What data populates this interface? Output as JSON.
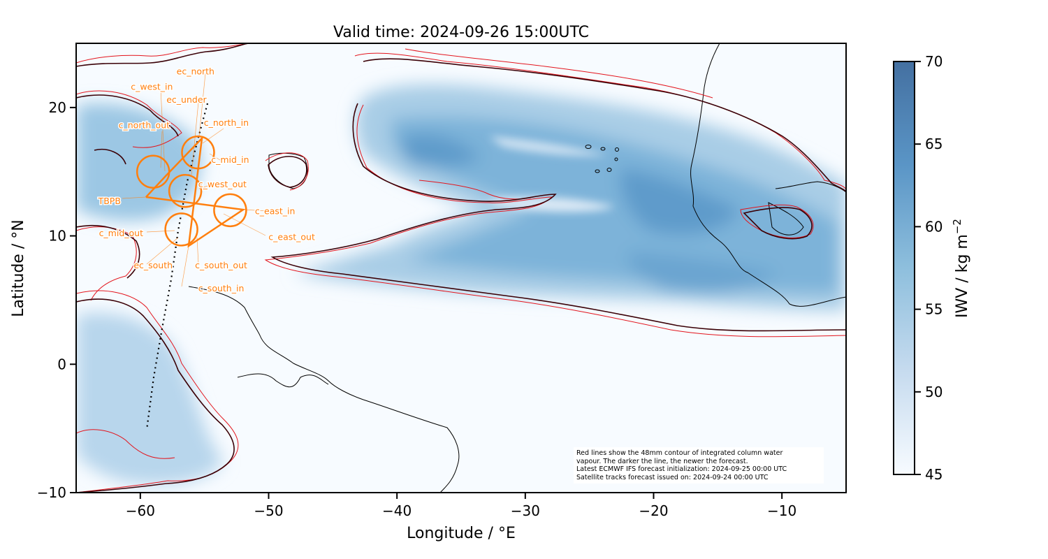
{
  "title": "Valid time: 2024-09-26 15:00UTC",
  "xaxis": {
    "label": "Longitude / °E",
    "ticks": [
      -60,
      -50,
      -40,
      -30,
      -20,
      -10
    ],
    "tick_labels": [
      "−60",
      "−50",
      "−40",
      "−30",
      "−20",
      "−10"
    ],
    "range": [
      -65,
      -5
    ]
  },
  "yaxis": {
    "label": "Latitude / °N",
    "ticks": [
      20,
      10,
      0,
      -10
    ],
    "tick_labels": [
      "20",
      "10",
      "0",
      "−10"
    ],
    "range": [
      -10,
      25
    ]
  },
  "colorbar": {
    "label": "IWV / kg m",
    "label_sup": "−2",
    "ticks": [
      70,
      65,
      60,
      55,
      50,
      45
    ],
    "tick_labels": [
      "70",
      "65",
      "60",
      "55",
      "50",
      "45"
    ],
    "range": [
      45,
      70
    ],
    "color_low": "#f7fbff",
    "color_high": "#4470a1"
  },
  "note_lines": [
    "Red lines show the 48mm contour of integrated column water",
    "vapour. The darker the line, the newer the forecast.",
    "Latest ECMWF IFS forecast initialization: 2024-09-25 00:00 UTC",
    "Satellite tracks forecast issued on: 2024-09-24 00:00 UTC"
  ],
  "flight_labels": [
    {
      "text": "ec_north",
      "lon": -55.7,
      "lat": 22.8
    },
    {
      "text": "c_west_in",
      "lon": -59.1,
      "lat": 21.6
    },
    {
      "text": "ec_under",
      "lon": -56.4,
      "lat": 20.6
    },
    {
      "text": "c_north_out",
      "lon": -59.7,
      "lat": 18.6
    },
    {
      "text": "c_north_in",
      "lon": -53.3,
      "lat": 18.8
    },
    {
      "text": "c_mid_in",
      "lon": -53.0,
      "lat": 15.9
    },
    {
      "text": "c_west_out",
      "lon": -53.6,
      "lat": 14.0
    },
    {
      "text": "TBPB",
      "lon": -62.4,
      "lat": 12.7
    },
    {
      "text": "c_east_in",
      "lon": -49.5,
      "lat": 11.9
    },
    {
      "text": "c_mid_out",
      "lon": -61.5,
      "lat": 10.2
    },
    {
      "text": "c_east_out",
      "lon": -48.2,
      "lat": 9.9
    },
    {
      "text": "ec_south",
      "lon": -59.0,
      "lat": 7.7
    },
    {
      "text": "c_south_out",
      "lon": -53.7,
      "lat": 7.7
    },
    {
      "text": "c_south_in",
      "lon": -53.7,
      "lat": 5.9
    }
  ],
  "circles": [
    {
      "name": "c_north",
      "lon": -55.5,
      "lat": 16.5
    },
    {
      "name": "c_west",
      "lon": -59.0,
      "lat": 15.0
    },
    {
      "name": "c_mid",
      "lon": -56.5,
      "lat": 13.5
    },
    {
      "name": "c_east",
      "lon": -53.0,
      "lat": 12.0
    },
    {
      "name": "c_south",
      "lon": -56.8,
      "lat": 10.5
    }
  ],
  "colors": {
    "track": "#ff7f0e",
    "contour_new": "#3a0006",
    "contour_old": "#e3141c",
    "coast": "#000000"
  }
}
